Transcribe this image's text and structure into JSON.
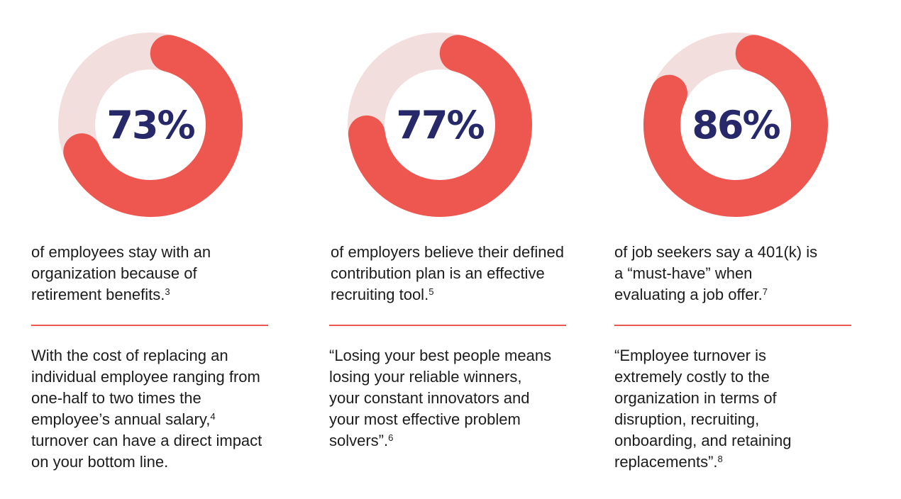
{
  "colors": {
    "accent": "#ee5750",
    "track": "#f2dedc",
    "number": "#262869"
  },
  "chart_data": [
    {
      "type": "pie",
      "variant": "donut",
      "value": 73,
      "label": "73%",
      "caption": "of employees stay with  an organization because of retirement benefits.",
      "footnote": "3"
    },
    {
      "type": "pie",
      "variant": "donut",
      "value": 77,
      "label": "77%",
      "caption": "of employers believe their defined contribution plan is an effective recruiting tool.",
      "footnote": "5"
    },
    {
      "type": "pie",
      "variant": "donut",
      "value": 86,
      "label": "86%",
      "caption": "of job seekers say a 401(k) is a “must-have” when evaluating a job offer.",
      "footnote": "7"
    }
  ],
  "columns": [
    {
      "body": "With the cost of replacing an individual employee ranging from one-half to two times the employee’s annual salary,",
      "body_footnote": "4",
      "body_tail": " turnover can have a direct impact  on your bottom line."
    },
    {
      "body": "“Losing your best people means  losing your reliable winners, your  constant innovators and your  most effective problem solvers”.",
      "body_footnote": "6",
      "body_tail": ""
    },
    {
      "body": "“Employee turnover is extremely  costly to the organization in  terms of disruption, recruiting, onboarding, and retaining replacements”.",
      "body_footnote": "8",
      "body_tail": ""
    }
  ]
}
